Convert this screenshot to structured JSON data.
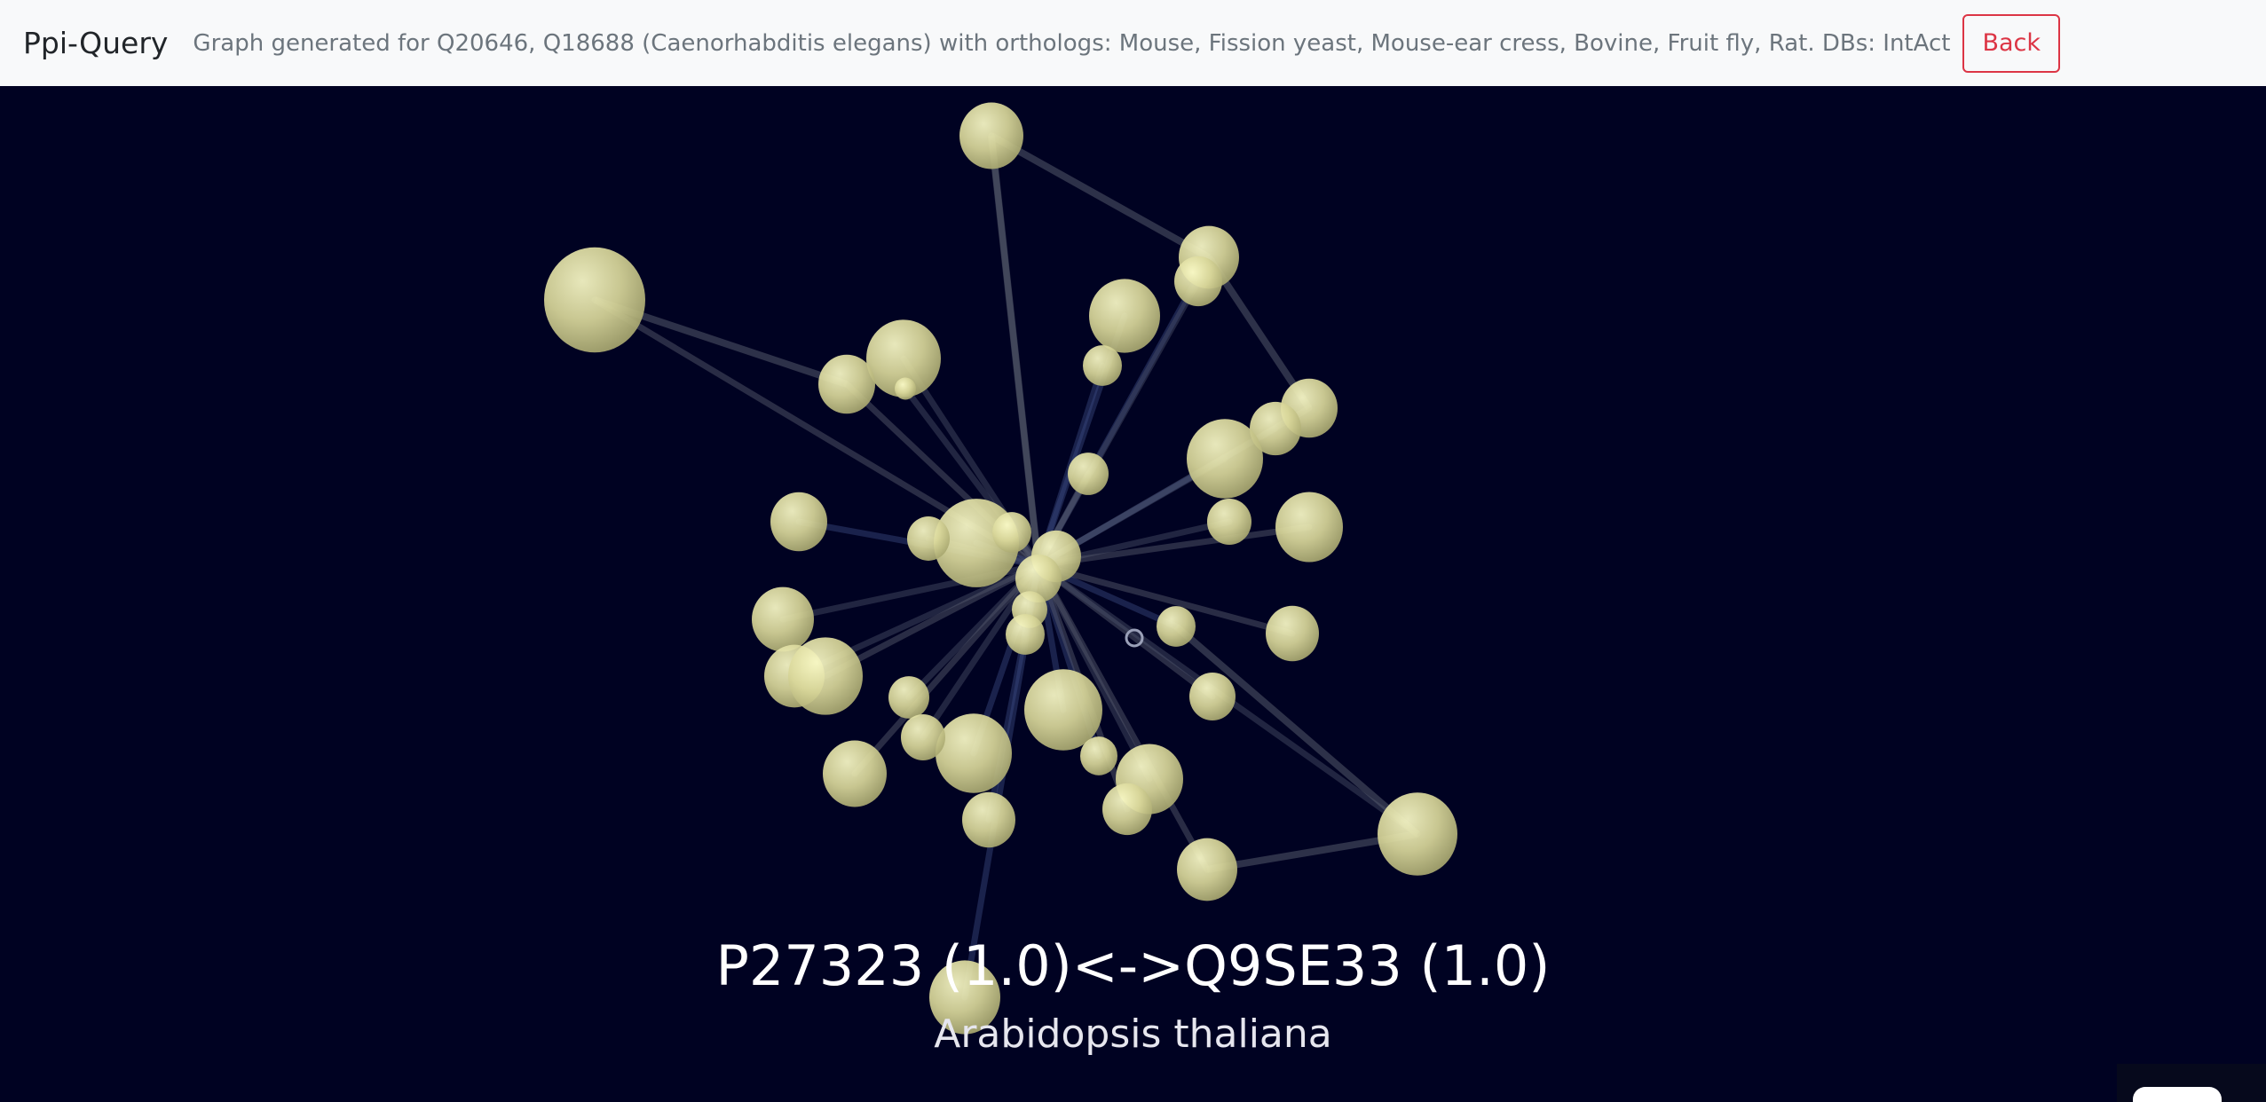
{
  "navbar": {
    "brand": "Ppi-Query",
    "description": "Graph generated for Q20646, Q18688 (Caenorhabditis elegans) with orthologs: Mouse, Fission yeast, Mouse-ear cress, Bovine, Fruit fly, Rat. DBs: IntAct",
    "back_label": "Back",
    "accent_color": "#dc3545"
  },
  "graph": {
    "background_color": "#000222",
    "node_color": "#e8e6a0",
    "hover": {
      "title": "P27323 (1.0)<->Q9SE33 (1.0)",
      "subtitle": "Arabidopsis thaliana"
    }
  }
}
